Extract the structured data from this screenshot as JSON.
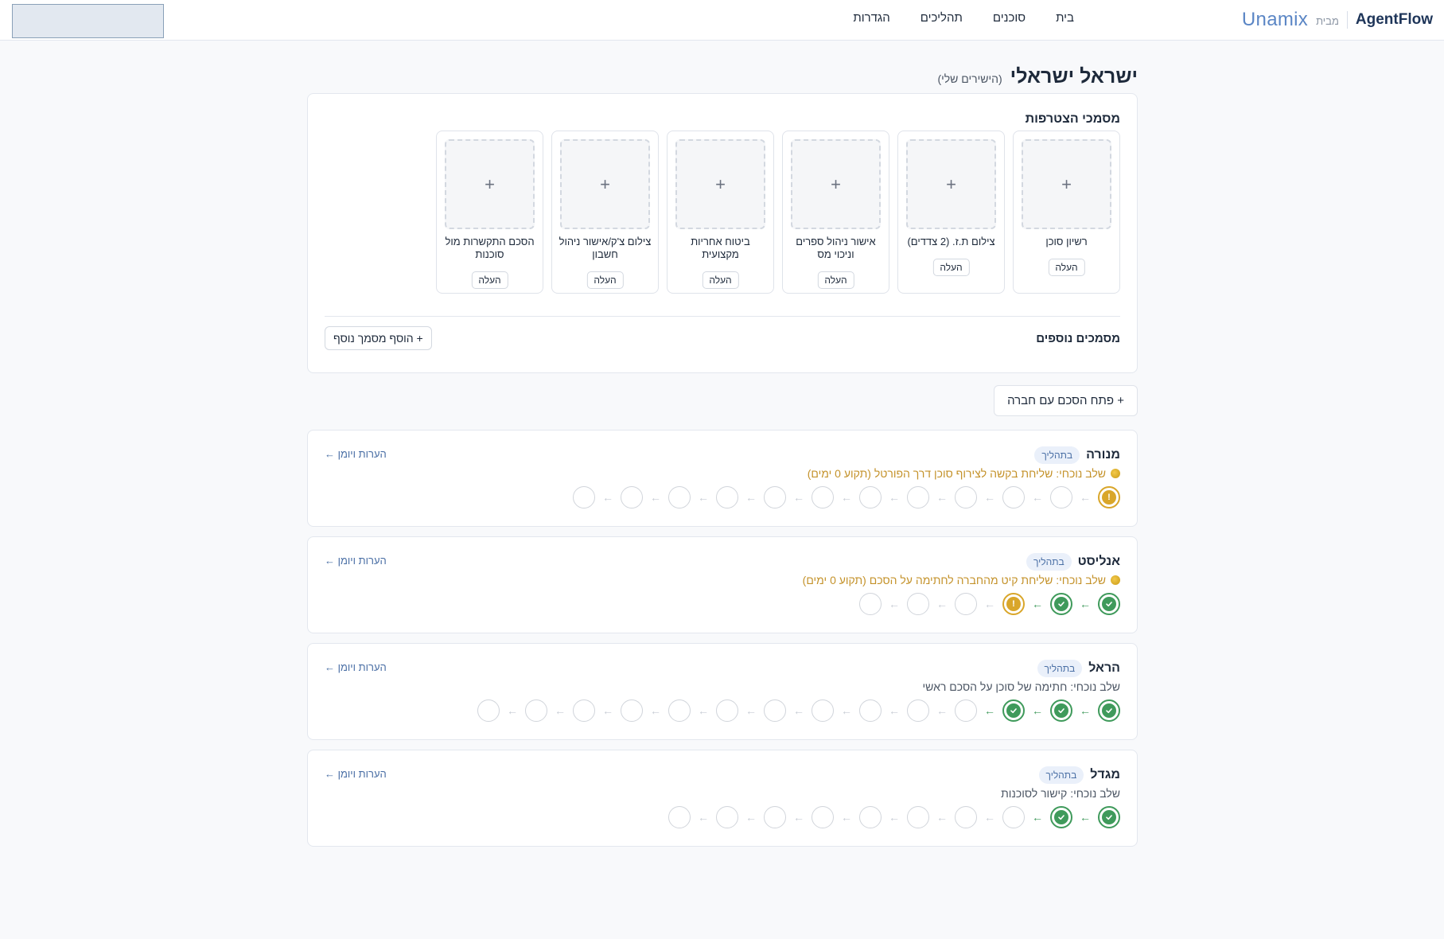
{
  "header": {
    "brand": "AgentFlow",
    "by": "מבית",
    "partner": "Unamix",
    "nav": [
      "בית",
      "סוכנים",
      "תהליכים",
      "הגדרות"
    ]
  },
  "agent": {
    "name": "ישראל ישראלי",
    "subtitle": "(הישירים שלי)"
  },
  "documents": {
    "title": "מסמכי הצטרפות",
    "upload_label": "העלה",
    "items": [
      "רשיון סוכן",
      "צילום ת.ז. (2 צדדים)",
      "אישור ניהול ספרים וניכוי מס",
      "ביטוח אחריות מקצועית",
      "צילום צ'ק/אישור ניהול חשבון",
      "הסכם התקשרות מול סוכנות"
    ],
    "more_title": "מסמכים נוספים",
    "add_button": "+ הוסף מסמך נוסף"
  },
  "open_agreement_button": "+ פתח הסכם עם חברה",
  "companies": [
    {
      "name": "מנורה",
      "status": "בתהליך",
      "notes_link": "הערות ויומן ←",
      "stage": "שלב נוכחי: שליחת בקשה לצירוף סוכן דרך הפורטל (תקוע 0 ימים)",
      "stage_warn": true,
      "steps": [
        "current",
        "empty",
        "empty",
        "empty",
        "empty",
        "empty",
        "empty",
        "empty",
        "empty",
        "empty",
        "empty",
        "empty"
      ]
    },
    {
      "name": "אנליסט",
      "status": "בתהליך",
      "notes_link": "הערות ויומן ←",
      "stage": "שלב נוכחי: שליחת קיט מהחברה לחתימה על הסכם (תקוע 0 ימים)",
      "stage_warn": true,
      "steps": [
        "done",
        "done",
        "current",
        "empty",
        "empty",
        "empty"
      ]
    },
    {
      "name": "הראל",
      "status": "בתהליך",
      "notes_link": "הערות ויומן ←",
      "stage": "שלב נוכחי: חתימה של סוכן על הסכם ראשי",
      "stage_warn": false,
      "steps": [
        "done",
        "done",
        "done",
        "empty",
        "empty",
        "empty",
        "empty",
        "empty",
        "empty",
        "empty",
        "empty",
        "empty",
        "empty",
        "empty"
      ]
    },
    {
      "name": "מגדל",
      "status": "בתהליך",
      "notes_link": "הערות ויומן ←",
      "stage": "שלב נוכחי: קישור לסוכנות",
      "stage_warn": false,
      "steps": [
        "done",
        "done",
        "empty",
        "empty",
        "empty",
        "empty",
        "empty",
        "empty",
        "empty",
        "empty"
      ]
    }
  ],
  "colors": {
    "brand_dark": "#1e3559",
    "partner_blue": "#5b86c5",
    "done_green": "#3f9a5b",
    "current_gold": "#d9a62a",
    "warn_text": "#c4922a"
  }
}
